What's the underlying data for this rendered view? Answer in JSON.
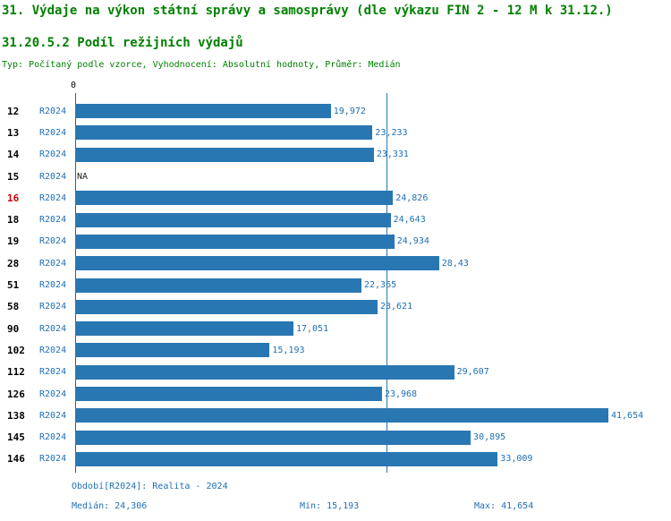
{
  "header": {
    "title": "31. Výdaje na výkon státní správy a samosprávy (dle výkazu FIN 2 - 12 M k 31.12.)",
    "subtitle": "31.20.5.2 Podíl režijních výdajů",
    "meta": "Typ: Počítaný podle vzorce, Vyhodnocení: Absolutní hodnoty, Průměr: Medián"
  },
  "chart_data": {
    "type": "bar",
    "orientation": "horizontal",
    "x_origin_label": "0",
    "xlim": [
      0,
      41.654
    ],
    "grid": false,
    "series_name": "R2024",
    "median": 24.306,
    "median_label": "24,306",
    "highlighted_category": "16",
    "rows": [
      {
        "category": "12",
        "series": "R2024",
        "value": 19.972,
        "label": "19,972",
        "highlight": false
      },
      {
        "category": "13",
        "series": "R2024",
        "value": 23.233,
        "label": "23,233",
        "highlight": false
      },
      {
        "category": "14",
        "series": "R2024",
        "value": 23.331,
        "label": "23,331",
        "highlight": false
      },
      {
        "category": "15",
        "series": "R2024",
        "value": null,
        "label": "NA",
        "highlight": false
      },
      {
        "category": "16",
        "series": "R2024",
        "value": 24.826,
        "label": "24,826",
        "highlight": true
      },
      {
        "category": "18",
        "series": "R2024",
        "value": 24.643,
        "label": "24,643",
        "highlight": false
      },
      {
        "category": "19",
        "series": "R2024",
        "value": 24.934,
        "label": "24,934",
        "highlight": false
      },
      {
        "category": "28",
        "series": "R2024",
        "value": 28.43,
        "label": "28,43",
        "highlight": false
      },
      {
        "category": "51",
        "series": "R2024",
        "value": 22.365,
        "label": "22,365",
        "highlight": false
      },
      {
        "category": "58",
        "series": "R2024",
        "value": 23.621,
        "label": "23,621",
        "highlight": false
      },
      {
        "category": "90",
        "series": "R2024",
        "value": 17.051,
        "label": "17,051",
        "highlight": false
      },
      {
        "category": "102",
        "series": "R2024",
        "value": 15.193,
        "label": "15,193",
        "highlight": false
      },
      {
        "category": "112",
        "series": "R2024",
        "value": 29.607,
        "label": "29,607",
        "highlight": false
      },
      {
        "category": "126",
        "series": "R2024",
        "value": 23.968,
        "label": "23,968",
        "highlight": false
      },
      {
        "category": "138",
        "series": "R2024",
        "value": 41.654,
        "label": "41,654",
        "highlight": false
      },
      {
        "category": "145",
        "series": "R2024",
        "value": 30.895,
        "label": "30,895",
        "highlight": false
      },
      {
        "category": "146",
        "series": "R2024",
        "value": 33.009,
        "label": "33,009",
        "highlight": false
      }
    ]
  },
  "footer": {
    "period": "Období[R2024]: Realita - 2024",
    "median": "Medián: 24,306",
    "min": "Min: 15,193",
    "max": "Max: 41,654"
  },
  "colors": {
    "title_green": "#008000",
    "bar_blue": "#2977b2",
    "text_blue": "#1f6fb5",
    "highlight_red": "#cc0000"
  }
}
